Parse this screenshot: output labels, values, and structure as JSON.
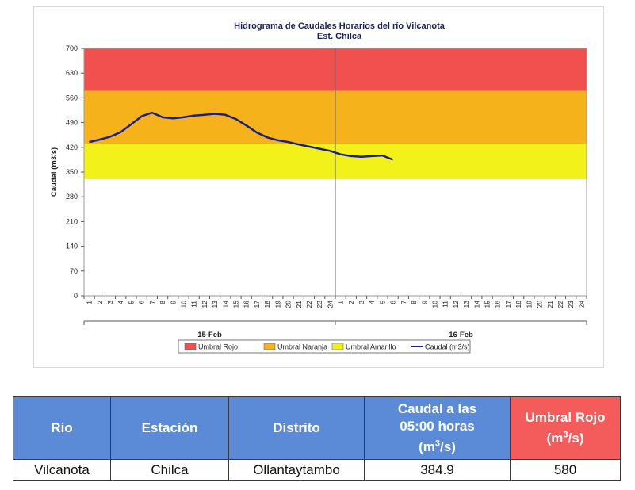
{
  "chart_data": {
    "type": "line",
    "title": "Hidrograma de Caudales Horarios del río Vilcanota",
    "subtitle": "Est. Chilca",
    "ylabel": "Caudal  (m3/s)",
    "xlabel": "",
    "ylim": [
      0,
      700
    ],
    "yticks": [
      0,
      70,
      140,
      210,
      280,
      350,
      420,
      490,
      560,
      630,
      700
    ],
    "x_hours": [
      "1",
      "2",
      "3",
      "4",
      "5",
      "6",
      "7",
      "8",
      "9",
      "10",
      "11",
      "12",
      "13",
      "14",
      "15",
      "16",
      "17",
      "18",
      "19",
      "20",
      "21",
      "22",
      "23",
      "24"
    ],
    "x_days": [
      "15-Feb",
      "16-Feb"
    ],
    "thresholds": [
      {
        "name": "Umbral Rojo",
        "from": 580,
        "to": 700,
        "color": "#f2504f"
      },
      {
        "name": "Umbral Naranja",
        "from": 430,
        "to": 580,
        "color": "#f5b21a"
      },
      {
        "name": "Umbral Amarillo",
        "from": 330,
        "to": 430,
        "color": "#f2f21a"
      }
    ],
    "series": [
      {
        "name": "Caudal (m3/s)",
        "color": "#1a1f8a",
        "x": [
          0,
          1,
          2,
          3,
          4,
          5,
          6,
          7,
          8,
          9,
          10,
          11,
          12,
          13,
          14,
          15,
          16,
          17,
          18,
          19,
          20,
          21,
          22,
          23,
          24,
          25,
          26,
          27,
          28,
          29
        ],
        "values": [
          435,
          442,
          450,
          463,
          485,
          508,
          518,
          505,
          502,
          505,
          510,
          512,
          515,
          512,
          500,
          482,
          462,
          448,
          440,
          435,
          428,
          422,
          416,
          410,
          400,
          395,
          393,
          395,
          397,
          385
        ]
      }
    ],
    "legend": [
      {
        "label": "Umbral Rojo",
        "color": "#f2504f",
        "kind": "box"
      },
      {
        "label": "Umbral Naranja",
        "color": "#f5b21a",
        "kind": "box"
      },
      {
        "label": "Umbral Amarillo",
        "color": "#f2f21a",
        "kind": "box"
      },
      {
        "label": "Caudal (m3/s)",
        "color": "#1a1f8a",
        "kind": "line"
      }
    ],
    "legend_position": "bottom",
    "grid": false
  },
  "table": {
    "headers": {
      "rio": "Rio",
      "estacion": "Estación",
      "distrito": "Distrito",
      "caudal_line1": "Caudal a las",
      "caudal_line2": "05:00 horas",
      "caudal_unit_pre": "(m",
      "caudal_unit_sup": "3",
      "caudal_unit_post": "/s)",
      "umbral_line1": "Umbral Rojo",
      "umbral_unit_pre": "(m",
      "umbral_unit_sup": "3",
      "umbral_unit_post": "/s)"
    },
    "row": {
      "rio": "Vilcanota",
      "estacion": "Chilca",
      "distrito": "Ollantaytambo",
      "caudal": "384.9",
      "umbral": "580"
    }
  }
}
